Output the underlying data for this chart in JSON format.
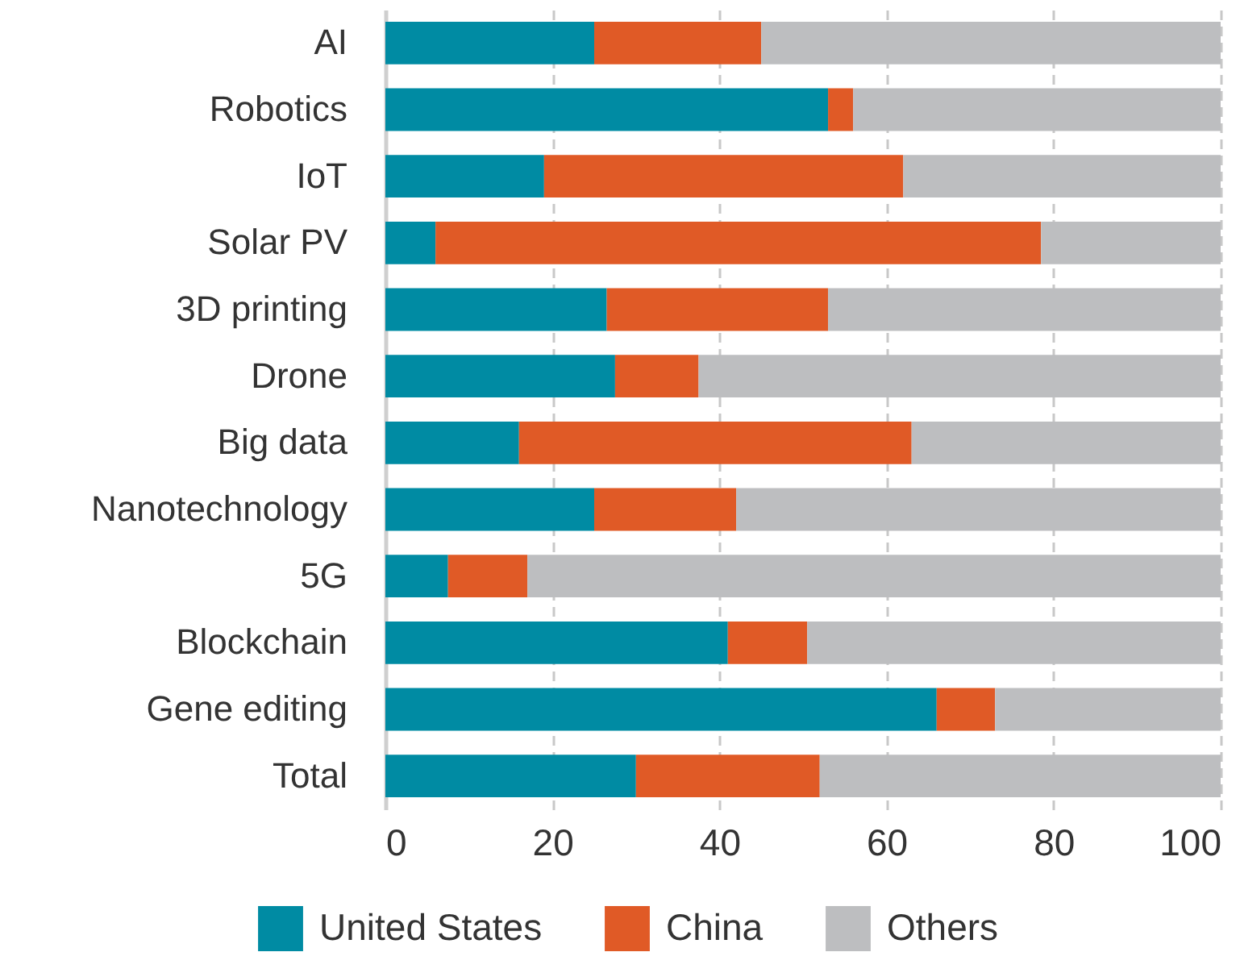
{
  "chart_data": {
    "type": "bar",
    "orientation": "horizontal",
    "stacked": true,
    "categories": [
      "AI",
      "Robotics",
      "IoT",
      "Solar PV",
      "3D printing",
      "Drone",
      "Big data",
      "Nanotechnology",
      "5G",
      "Blockchain",
      "Gene editing",
      "Total"
    ],
    "series": [
      {
        "name": "United States",
        "color": "#008ba3",
        "values": [
          25,
          53,
          19,
          6,
          26.5,
          27.5,
          16,
          25,
          7.5,
          41,
          66,
          30
        ]
      },
      {
        "name": "China",
        "color": "#e05a26",
        "values": [
          20,
          3,
          43,
          72.5,
          26.5,
          10,
          47,
          17,
          9.5,
          9.5,
          7,
          22
        ]
      },
      {
        "name": "Others",
        "color": "#bdbec0",
        "values": [
          55,
          44,
          38,
          21.5,
          47,
          62.5,
          37,
          58,
          83,
          49.5,
          27,
          48
        ]
      }
    ],
    "xlim": [
      0,
      100
    ],
    "xticks": [
      0,
      20,
      40,
      60,
      80,
      100
    ],
    "grid": "x",
    "legend": "bottom"
  }
}
